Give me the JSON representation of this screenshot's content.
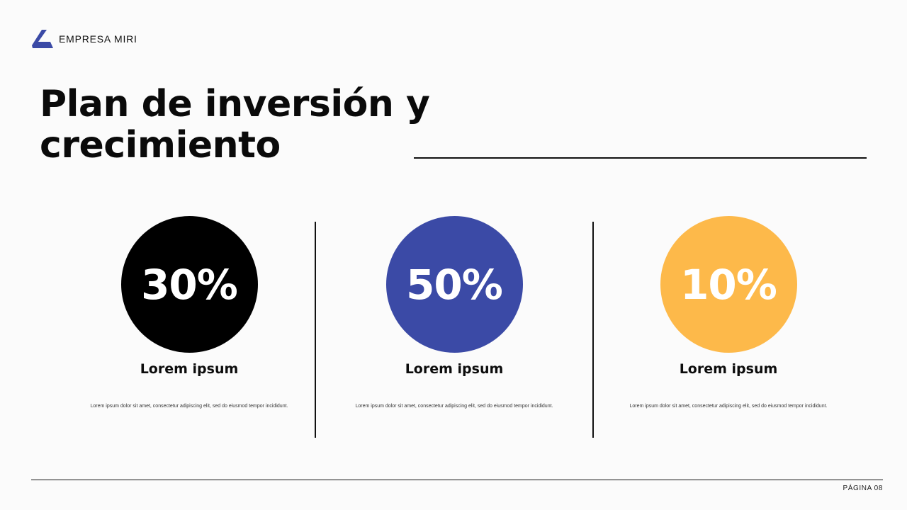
{
  "brand": {
    "name": "EMPRESA MIRI",
    "logo_color": "#3b4aa6"
  },
  "slide": {
    "title": "Plan de inversión y crecimiento",
    "page_label": "PÁGINA 08"
  },
  "stats": [
    {
      "value": "30%",
      "label": "Lorem ipsum",
      "description": "Lorem ipsum dolor sit amet, consectetur adipiscing elit, sed do eiusmod tempor incididunt.",
      "color": "#000000"
    },
    {
      "value": "50%",
      "label": "Lorem ipsum",
      "description": "Lorem ipsum dolor sit amet, consectetur adipiscing elit, sed do eiusmod tempor incididunt.",
      "color": "#3b4aa6"
    },
    {
      "value": "10%",
      "label": "Lorem ipsum",
      "description": "Lorem ipsum dolor sit amet, consectetur adipiscing elit, sed do eiusmod tempor incididunt.",
      "color": "#fdb94a"
    }
  ]
}
